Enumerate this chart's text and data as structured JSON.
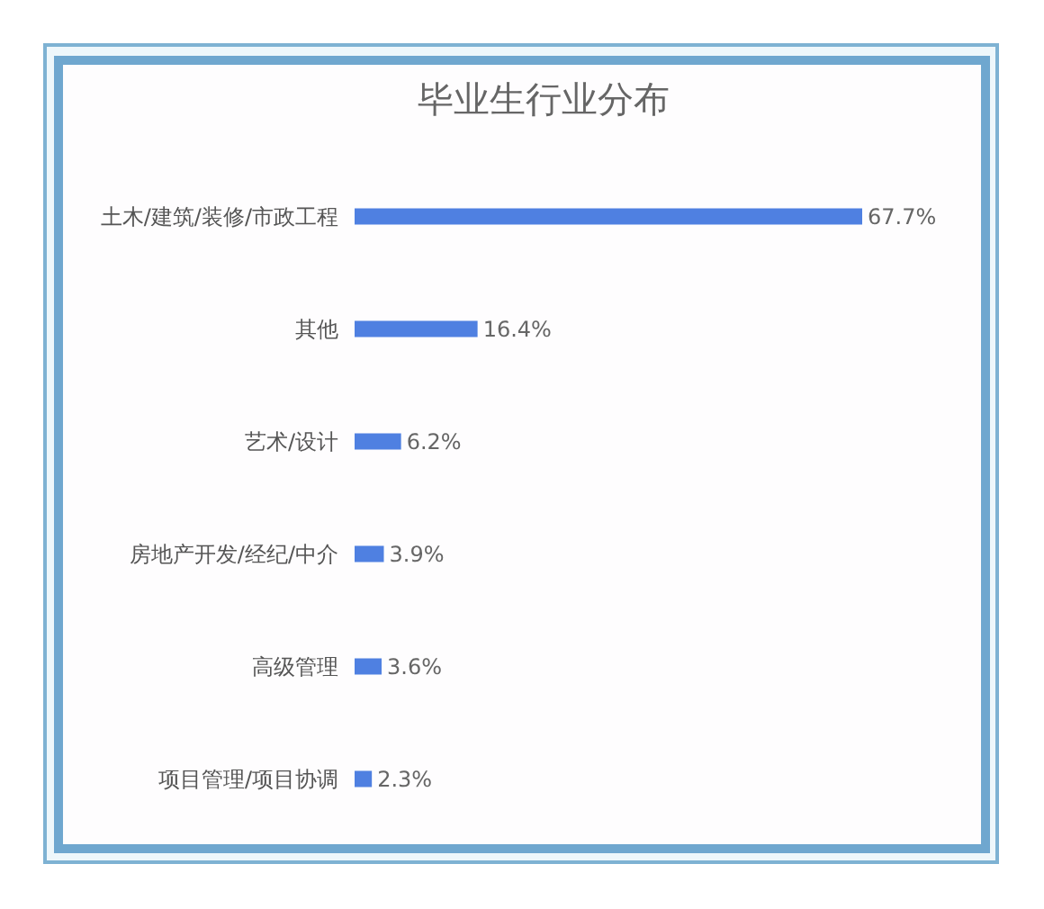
{
  "chart_data": {
    "type": "bar",
    "orientation": "horizontal",
    "title": "毕业生行业分布",
    "categories": [
      "土木/建筑/装修/市政工程",
      "其他",
      "艺术/设计",
      "房地产开发/经纪/中介",
      "高级管理",
      "项目管理/项目协调"
    ],
    "values": [
      67.7,
      16.4,
      6.2,
      3.9,
      3.6,
      2.3
    ],
    "value_labels": [
      "67.7%",
      "16.4%",
      "6.2%",
      "3.9%",
      "3.6%",
      "2.3%"
    ],
    "color": "#4f80e1"
  }
}
